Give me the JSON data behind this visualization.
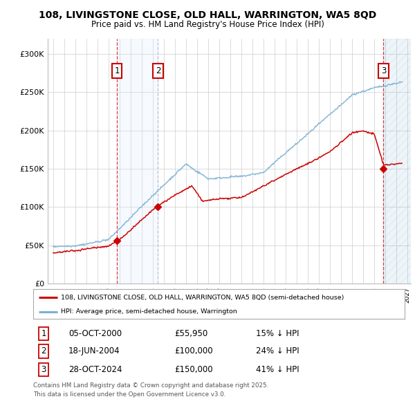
{
  "title_line1": "108, LIVINGSTONE CLOSE, OLD HALL, WARRINGTON, WA5 8QD",
  "title_line2": "Price paid vs. HM Land Registry's House Price Index (HPI)",
  "ylim": [
    0,
    320000
  ],
  "yticks": [
    0,
    50000,
    100000,
    150000,
    200000,
    250000,
    300000
  ],
  "ytick_labels": [
    "£0",
    "£50K",
    "£100K",
    "£150K",
    "£200K",
    "£250K",
    "£300K"
  ],
  "xlim_start": 1994.5,
  "xlim_end": 2027.3,
  "transaction_dates": [
    2000.76,
    2004.46,
    2024.83
  ],
  "transaction_prices": [
    55950,
    100000,
    150000
  ],
  "transaction_labels": [
    "1",
    "2",
    "3"
  ],
  "legend_property": "108, LIVINGSTONE CLOSE, OLD HALL, WARRINGTON, WA5 8QD (semi-detached house)",
  "legend_hpi": "HPI: Average price, semi-detached house, Warrington",
  "sale_info": [
    {
      "num": "1",
      "date": "05-OCT-2000",
      "price": "£55,950",
      "hpi": "15% ↓ HPI"
    },
    {
      "num": "2",
      "date": "18-JUN-2004",
      "price": "£100,000",
      "hpi": "24% ↓ HPI"
    },
    {
      "num": "3",
      "date": "28-OCT-2024",
      "price": "£150,000",
      "hpi": "41% ↓ HPI"
    }
  ],
  "footnote": "Contains HM Land Registry data © Crown copyright and database right 2025.\nThis data is licensed under the Open Government Licence v3.0.",
  "property_color": "#cc0000",
  "hpi_color": "#7ab0d4",
  "background_color": "#ffffff",
  "shade_color": "#ddeeff"
}
